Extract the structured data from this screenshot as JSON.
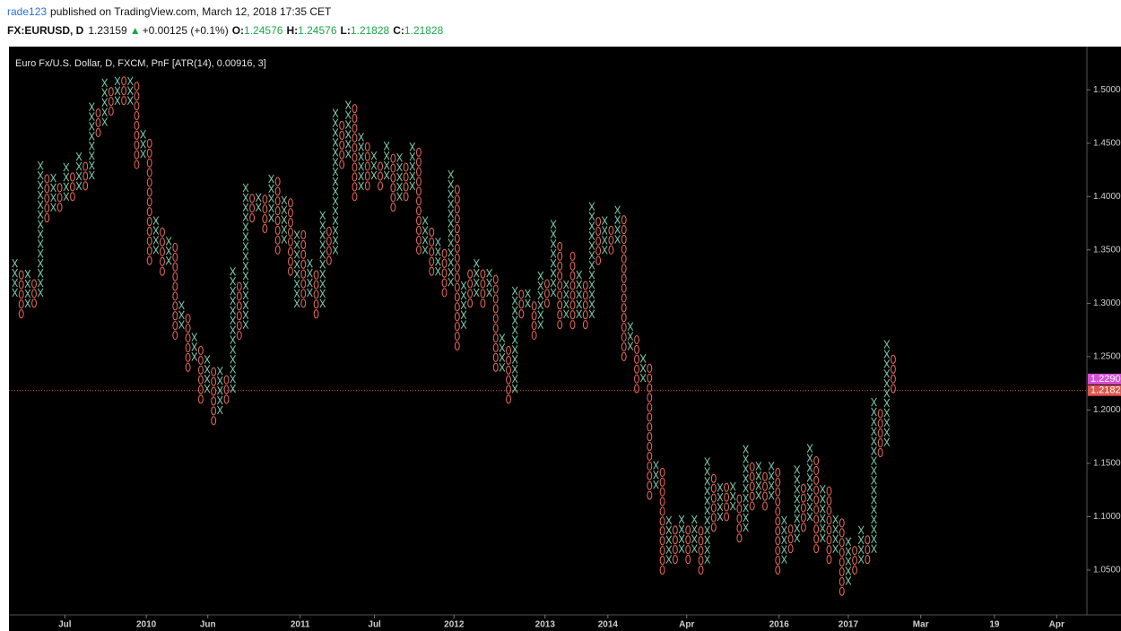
{
  "header": {
    "publisher": "rade123",
    "published_text": "published on TradingView.com, March 12, 2018 17:35 CET",
    "symbol": "FX:EURUSD, D",
    "price": "1.23159",
    "arrow": "▲",
    "change": "+0.00125 (+0.1%)",
    "ohlc": [
      {
        "label": "O:",
        "value": "1.24576"
      },
      {
        "label": "H:",
        "value": "1.24576"
      },
      {
        "label": "L:",
        "value": "1.21828"
      },
      {
        "label": "C:",
        "value": "1.21828"
      }
    ]
  },
  "chart_data": {
    "type": "pnf",
    "title": "Euro Fx/U.S. Dollar, D, FXCM, PnF [ATR(14), 0.00916, 3]",
    "box_size": 0.00916,
    "x_color": "#7ccfae",
    "o_color": "#ef6a5e",
    "ylim": [
      1.008,
      1.538
    ],
    "yticks": [
      {
        "value": 1.05,
        "label": "1.0500"
      },
      {
        "value": 1.1,
        "label": "1.1000"
      },
      {
        "value": 1.15,
        "label": "1.1500"
      },
      {
        "value": 1.2,
        "label": "1.2000"
      },
      {
        "value": 1.25,
        "label": "1.2500"
      },
      {
        "value": 1.3,
        "label": "1.3000"
      },
      {
        "value": 1.35,
        "label": "1.3500"
      },
      {
        "value": 1.4,
        "label": "1.4000"
      },
      {
        "value": 1.45,
        "label": "1.4500"
      },
      {
        "value": 1.5,
        "label": "1.5000"
      }
    ],
    "xlim": [
      0,
      168
    ],
    "xticks": [
      {
        "value": 8.3,
        "label": "Jul"
      },
      {
        "value": 21,
        "label": "2010"
      },
      {
        "value": 30.6,
        "label": "Jun"
      },
      {
        "value": 45,
        "label": "2011"
      },
      {
        "value": 56.6,
        "label": "Jul"
      },
      {
        "value": 69,
        "label": "2012"
      },
      {
        "value": 83.2,
        "label": "2013"
      },
      {
        "value": 93,
        "label": "2014"
      },
      {
        "value": 105.3,
        "label": "Apr"
      },
      {
        "value": 119.7,
        "label": "2016"
      },
      {
        "value": 130.5,
        "label": "2017"
      },
      {
        "value": 141.8,
        "label": "Mar"
      },
      {
        "value": 153.3,
        "label": "19"
      },
      {
        "value": 163,
        "label": "Apr"
      }
    ],
    "last_price": {
      "value": 1.2182,
      "label": "1.2182",
      "color": "#e0574d"
    },
    "marker_price": {
      "value": 1.229,
      "label": "1.2290",
      "color": "#d64fd6"
    },
    "columns": [
      {
        "kind": "X",
        "low": 1.31,
        "high": 1.34
      },
      {
        "kind": "O",
        "low": 1.29,
        "high": 1.33
      },
      {
        "kind": "X",
        "low": 1.3,
        "high": 1.33
      },
      {
        "kind": "O",
        "low": 1.3,
        "high": 1.32
      },
      {
        "kind": "X",
        "low": 1.31,
        "high": 1.43
      },
      {
        "kind": "O",
        "low": 1.38,
        "high": 1.42
      },
      {
        "kind": "X",
        "low": 1.39,
        "high": 1.42
      },
      {
        "kind": "O",
        "low": 1.39,
        "high": 1.41
      },
      {
        "kind": "X",
        "low": 1.4,
        "high": 1.43
      },
      {
        "kind": "O",
        "low": 1.4,
        "high": 1.42
      },
      {
        "kind": "X",
        "low": 1.41,
        "high": 1.44
      },
      {
        "kind": "O",
        "low": 1.41,
        "high": 1.43
      },
      {
        "kind": "X",
        "low": 1.42,
        "high": 1.48
      },
      {
        "kind": "O",
        "low": 1.46,
        "high": 1.48
      },
      {
        "kind": "X",
        "low": 1.47,
        "high": 1.51
      },
      {
        "kind": "O",
        "low": 1.48,
        "high": 1.5
      },
      {
        "kind": "X",
        "low": 1.49,
        "high": 1.51
      },
      {
        "kind": "O",
        "low": 1.49,
        "high": 1.51
      },
      {
        "kind": "X",
        "low": 1.49,
        "high": 1.51
      },
      {
        "kind": "O",
        "low": 1.43,
        "high": 1.5
      },
      {
        "kind": "X",
        "low": 1.44,
        "high": 1.46
      },
      {
        "kind": "O",
        "low": 1.34,
        "high": 1.45
      },
      {
        "kind": "X",
        "low": 1.35,
        "high": 1.38
      },
      {
        "kind": "O",
        "low": 1.33,
        "high": 1.37
      },
      {
        "kind": "X",
        "low": 1.34,
        "high": 1.36
      },
      {
        "kind": "O",
        "low": 1.27,
        "high": 1.35
      },
      {
        "kind": "X",
        "low": 1.28,
        "high": 1.3
      },
      {
        "kind": "O",
        "low": 1.24,
        "high": 1.29
      },
      {
        "kind": "X",
        "low": 1.25,
        "high": 1.27
      },
      {
        "kind": "O",
        "low": 1.21,
        "high": 1.26
      },
      {
        "kind": "X",
        "low": 1.22,
        "high": 1.25
      },
      {
        "kind": "O",
        "low": 1.19,
        "high": 1.24
      },
      {
        "kind": "X",
        "low": 1.2,
        "high": 1.24
      },
      {
        "kind": "O",
        "low": 1.21,
        "high": 1.23
      },
      {
        "kind": "X",
        "low": 1.22,
        "high": 1.33
      },
      {
        "kind": "O",
        "low": 1.27,
        "high": 1.32
      },
      {
        "kind": "X",
        "low": 1.28,
        "high": 1.41
      },
      {
        "kind": "O",
        "low": 1.38,
        "high": 1.4
      },
      {
        "kind": "X",
        "low": 1.39,
        "high": 1.4
      },
      {
        "kind": "O",
        "low": 1.37,
        "high": 1.4
      },
      {
        "kind": "X",
        "low": 1.38,
        "high": 1.42
      },
      {
        "kind": "O",
        "low": 1.35,
        "high": 1.41
      },
      {
        "kind": "X",
        "low": 1.36,
        "high": 1.4
      },
      {
        "kind": "O",
        "low": 1.33,
        "high": 1.39
      },
      {
        "kind": "X",
        "low": 1.3,
        "high": 1.36
      },
      {
        "kind": "O",
        "low": 1.3,
        "high": 1.36
      },
      {
        "kind": "X",
        "low": 1.31,
        "high": 1.34
      },
      {
        "kind": "O",
        "low": 1.29,
        "high": 1.33
      },
      {
        "kind": "X",
        "low": 1.3,
        "high": 1.38
      },
      {
        "kind": "O",
        "low": 1.34,
        "high": 1.37
      },
      {
        "kind": "X",
        "low": 1.35,
        "high": 1.48
      },
      {
        "kind": "O",
        "low": 1.43,
        "high": 1.47
      },
      {
        "kind": "X",
        "low": 1.44,
        "high": 1.49
      },
      {
        "kind": "O",
        "low": 1.4,
        "high": 1.48
      },
      {
        "kind": "X",
        "low": 1.41,
        "high": 1.46
      },
      {
        "kind": "O",
        "low": 1.41,
        "high": 1.45
      },
      {
        "kind": "X",
        "low": 1.42,
        "high": 1.44
      },
      {
        "kind": "O",
        "low": 1.41,
        "high": 1.43
      },
      {
        "kind": "X",
        "low": 1.42,
        "high": 1.45
      },
      {
        "kind": "O",
        "low": 1.39,
        "high": 1.44
      },
      {
        "kind": "X",
        "low": 1.4,
        "high": 1.44
      },
      {
        "kind": "O",
        "low": 1.4,
        "high": 1.43
      },
      {
        "kind": "X",
        "low": 1.41,
        "high": 1.45
      },
      {
        "kind": "O",
        "low": 1.35,
        "high": 1.44
      },
      {
        "kind": "X",
        "low": 1.35,
        "high": 1.38
      },
      {
        "kind": "O",
        "low": 1.33,
        "high": 1.37
      },
      {
        "kind": "X",
        "low": 1.33,
        "high": 1.36
      },
      {
        "kind": "O",
        "low": 1.31,
        "high": 1.35
      },
      {
        "kind": "X",
        "low": 1.32,
        "high": 1.42
      },
      {
        "kind": "O",
        "low": 1.26,
        "high": 1.41
      },
      {
        "kind": "X",
        "low": 1.28,
        "high": 1.32
      },
      {
        "kind": "O",
        "low": 1.3,
        "high": 1.33
      },
      {
        "kind": "X",
        "low": 1.31,
        "high": 1.34
      },
      {
        "kind": "O",
        "low": 1.3,
        "high": 1.33
      },
      {
        "kind": "X",
        "low": 1.31,
        "high": 1.33
      },
      {
        "kind": "O",
        "low": 1.24,
        "high": 1.32
      },
      {
        "kind": "X",
        "low": 1.24,
        "high": 1.27
      },
      {
        "kind": "O",
        "low": 1.21,
        "high": 1.26
      },
      {
        "kind": "X",
        "low": 1.22,
        "high": 1.31
      },
      {
        "kind": "O",
        "low": 1.29,
        "high": 1.31
      },
      {
        "kind": "X",
        "low": 1.3,
        "high": 1.31
      },
      {
        "kind": "O",
        "low": 1.27,
        "high": 1.3
      },
      {
        "kind": "X",
        "low": 1.28,
        "high": 1.33
      },
      {
        "kind": "O",
        "low": 1.3,
        "high": 1.32
      },
      {
        "kind": "X",
        "low": 1.31,
        "high": 1.37
      },
      {
        "kind": "O",
        "low": 1.28,
        "high": 1.35
      },
      {
        "kind": "X",
        "low": 1.29,
        "high": 1.32
      },
      {
        "kind": "O",
        "low": 1.28,
        "high": 1.34
      },
      {
        "kind": "X",
        "low": 1.29,
        "high": 1.33
      },
      {
        "kind": "O",
        "low": 1.28,
        "high": 1.32
      },
      {
        "kind": "X",
        "low": 1.29,
        "high": 1.39
      },
      {
        "kind": "O",
        "low": 1.34,
        "high": 1.38
      },
      {
        "kind": "X",
        "low": 1.35,
        "high": 1.38
      },
      {
        "kind": "O",
        "low": 1.35,
        "high": 1.37
      },
      {
        "kind": "X",
        "low": 1.36,
        "high": 1.39
      },
      {
        "kind": "O",
        "low": 1.25,
        "high": 1.38
      },
      {
        "kind": "X",
        "low": 1.26,
        "high": 1.28
      },
      {
        "kind": "O",
        "low": 1.22,
        "high": 1.27
      },
      {
        "kind": "X",
        "low": 1.23,
        "high": 1.25
      },
      {
        "kind": "O",
        "low": 1.12,
        "high": 1.24
      },
      {
        "kind": "X",
        "low": 1.13,
        "high": 1.15
      },
      {
        "kind": "O",
        "low": 1.05,
        "high": 1.14
      },
      {
        "kind": "X",
        "low": 1.06,
        "high": 1.1
      },
      {
        "kind": "O",
        "low": 1.06,
        "high": 1.09
      },
      {
        "kind": "X",
        "low": 1.07,
        "high": 1.1
      },
      {
        "kind": "O",
        "low": 1.06,
        "high": 1.09
      },
      {
        "kind": "X",
        "low": 1.07,
        "high": 1.1
      },
      {
        "kind": "O",
        "low": 1.05,
        "high": 1.09
      },
      {
        "kind": "X",
        "low": 1.06,
        "high": 1.15
      },
      {
        "kind": "O",
        "low": 1.09,
        "high": 1.14
      },
      {
        "kind": "X",
        "low": 1.1,
        "high": 1.13
      },
      {
        "kind": "O",
        "low": 1.1,
        "high": 1.13
      },
      {
        "kind": "X",
        "low": 1.11,
        "high": 1.13
      },
      {
        "kind": "O",
        "low": 1.08,
        "high": 1.12
      },
      {
        "kind": "X",
        "low": 1.09,
        "high": 1.16
      },
      {
        "kind": "O",
        "low": 1.11,
        "high": 1.15
      },
      {
        "kind": "X",
        "low": 1.12,
        "high": 1.15
      },
      {
        "kind": "O",
        "low": 1.11,
        "high": 1.14
      },
      {
        "kind": "X",
        "low": 1.12,
        "high": 1.15
      },
      {
        "kind": "O",
        "low": 1.05,
        "high": 1.14
      },
      {
        "kind": "X",
        "low": 1.06,
        "high": 1.1
      },
      {
        "kind": "O",
        "low": 1.07,
        "high": 1.09
      },
      {
        "kind": "X",
        "low": 1.08,
        "high": 1.14
      },
      {
        "kind": "O",
        "low": 1.09,
        "high": 1.13
      },
      {
        "kind": "X",
        "low": 1.1,
        "high": 1.16
      },
      {
        "kind": "O",
        "low": 1.07,
        "high": 1.15
      },
      {
        "kind": "X",
        "low": 1.08,
        "high": 1.13
      },
      {
        "kind": "O",
        "low": 1.06,
        "high": 1.12
      },
      {
        "kind": "X",
        "low": 1.07,
        "high": 1.1
      },
      {
        "kind": "O",
        "low": 1.03,
        "high": 1.09
      },
      {
        "kind": "X",
        "low": 1.04,
        "high": 1.08
      },
      {
        "kind": "O",
        "low": 1.05,
        "high": 1.07
      },
      {
        "kind": "X",
        "low": 1.06,
        "high": 1.09
      },
      {
        "kind": "O",
        "low": 1.06,
        "high": 1.08
      },
      {
        "kind": "X",
        "low": 1.07,
        "high": 1.21
      },
      {
        "kind": "O",
        "low": 1.16,
        "high": 1.2
      },
      {
        "kind": "X",
        "low": 1.17,
        "high": 1.26
      },
      {
        "kind": "O",
        "low": 1.22,
        "high": 1.25
      }
    ]
  }
}
